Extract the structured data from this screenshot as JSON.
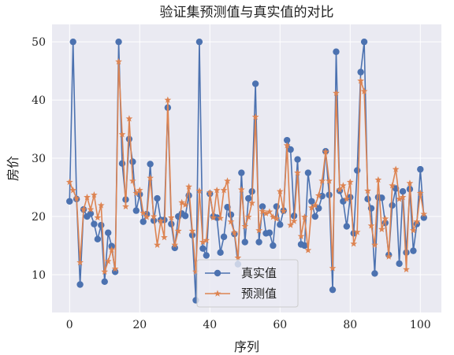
{
  "chart_data": {
    "type": "line",
    "title": "验证集预测值与真实值的对比",
    "xlabel": "序列",
    "ylabel": "房价",
    "xlim": [
      -5,
      106
    ],
    "ylim": [
      3.5,
      53
    ],
    "xticks": [
      0,
      20,
      40,
      60,
      80,
      100
    ],
    "yticks": [
      10,
      20,
      30,
      40,
      50
    ],
    "grid": true,
    "legend_position": "lower-center",
    "series": [
      {
        "name": "真实值",
        "marker": "circle",
        "color": "#4c72b0",
        "x": [
          0,
          1,
          2,
          3,
          4,
          5,
          6,
          7,
          8,
          9,
          10,
          11,
          12,
          13,
          14,
          15,
          16,
          17,
          18,
          19,
          20,
          21,
          22,
          23,
          24,
          25,
          26,
          27,
          28,
          29,
          30,
          31,
          32,
          33,
          34,
          35,
          36,
          37,
          38,
          39,
          40,
          41,
          42,
          43,
          44,
          45,
          46,
          47,
          48,
          49,
          50,
          51,
          52,
          53,
          54,
          55,
          56,
          57,
          58,
          59,
          60,
          61,
          62,
          63,
          64,
          65,
          66,
          67,
          68,
          69,
          70,
          71,
          72,
          73,
          74,
          75,
          76,
          77,
          78,
          79,
          80,
          81,
          82,
          83,
          84,
          85,
          86,
          87,
          88,
          89,
          90,
          91,
          92,
          93,
          94,
          95,
          96,
          97,
          98,
          99,
          100,
          101
        ],
        "values": [
          22.6,
          50.0,
          23.0,
          8.3,
          21.2,
          20.0,
          20.5,
          18.7,
          16.1,
          18.5,
          8.8,
          17.2,
          14.9,
          10.5,
          50.0,
          29.1,
          22.9,
          33.3,
          29.4,
          21.0,
          23.8,
          19.1,
          20.4,
          29.0,
          19.3,
          23.1,
          19.4,
          19.4,
          38.7,
          18.7,
          14.6,
          20.0,
          20.5,
          20.1,
          23.6,
          16.8,
          5.6,
          50.0,
          14.5,
          13.3,
          23.9,
          20.0,
          19.8,
          13.8,
          16.5,
          21.6,
          20.3,
          17.0,
          11.8,
          27.5,
          15.6,
          23.1,
          24.3,
          42.8,
          15.6,
          21.7,
          17.1,
          17.2,
          15.0,
          21.7,
          18.6,
          21.0,
          33.1,
          31.5,
          20.1,
          29.8,
          15.2,
          15.0,
          27.5,
          22.6,
          20.0,
          21.4,
          23.5,
          31.2,
          23.7,
          7.4,
          48.3,
          24.4,
          22.6,
          18.3,
          23.3,
          17.1,
          27.9,
          44.8,
          50.0,
          23.0,
          21.4,
          10.2,
          23.3,
          23.2,
          18.9,
          13.4,
          21.9,
          24.8,
          11.9,
          24.3,
          13.8,
          24.7,
          14.1,
          18.7,
          28.1,
          19.8
        ]
      },
      {
        "name": "预测值",
        "marker": "star",
        "color": "#dd8452",
        "x": [
          0,
          1,
          2,
          3,
          4,
          5,
          6,
          7,
          8,
          9,
          10,
          11,
          12,
          13,
          14,
          15,
          16,
          17,
          18,
          19,
          20,
          21,
          22,
          23,
          24,
          25,
          26,
          27,
          28,
          29,
          30,
          31,
          32,
          33,
          34,
          35,
          36,
          37,
          38,
          39,
          40,
          41,
          42,
          43,
          44,
          45,
          46,
          47,
          48,
          49,
          50,
          51,
          52,
          53,
          54,
          55,
          56,
          57,
          58,
          59,
          60,
          61,
          62,
          63,
          64,
          65,
          66,
          67,
          68,
          69,
          70,
          71,
          72,
          73,
          74,
          75,
          76,
          77,
          78,
          79,
          80,
          81,
          82,
          83,
          84,
          85,
          86,
          87,
          88,
          89,
          90,
          91,
          92,
          93,
          94,
          95,
          96,
          97,
          98,
          99,
          100,
          101
        ],
        "values": [
          25.9,
          24.5,
          23.1,
          12.1,
          21.2,
          23.3,
          21.2,
          23.7,
          19.8,
          21.9,
          10.5,
          12.3,
          14.3,
          11.0,
          46.6,
          34.1,
          21.7,
          36.8,
          26.1,
          24.0,
          24.5,
          20.6,
          19.9,
          26.6,
          20.0,
          15.1,
          19.2,
          16.4,
          40.0,
          19.8,
          15.1,
          17.5,
          22.4,
          22.0,
          25.1,
          17.5,
          10.5,
          24.4,
          15.6,
          15.9,
          24.1,
          19.8,
          24.5,
          19.7,
          24.5,
          26.1,
          19.1,
          17.2,
          12.9,
          24.6,
          18.3,
          19.9,
          22.3,
          37.1,
          17.6,
          20.9,
          20.5,
          20.8,
          19.9,
          19.6,
          24.3,
          20.9,
          32.2,
          18.5,
          19.2,
          27.5,
          16.6,
          19.9,
          14.2,
          21.5,
          21.9,
          23.6,
          26.1,
          31.1,
          26.1,
          11.1,
          41.2,
          24.6,
          25.3,
          23.0,
          25.9,
          15.3,
          17.3,
          43.3,
          41.5,
          24.4,
          18.4,
          15.1,
          26.3,
          17.8,
          19.6,
          13.1,
          25.3,
          28.1,
          23.0,
          23.3,
          10.9,
          25.7,
          17.6,
          19.1,
          24.0,
          20.4
        ]
      }
    ]
  }
}
